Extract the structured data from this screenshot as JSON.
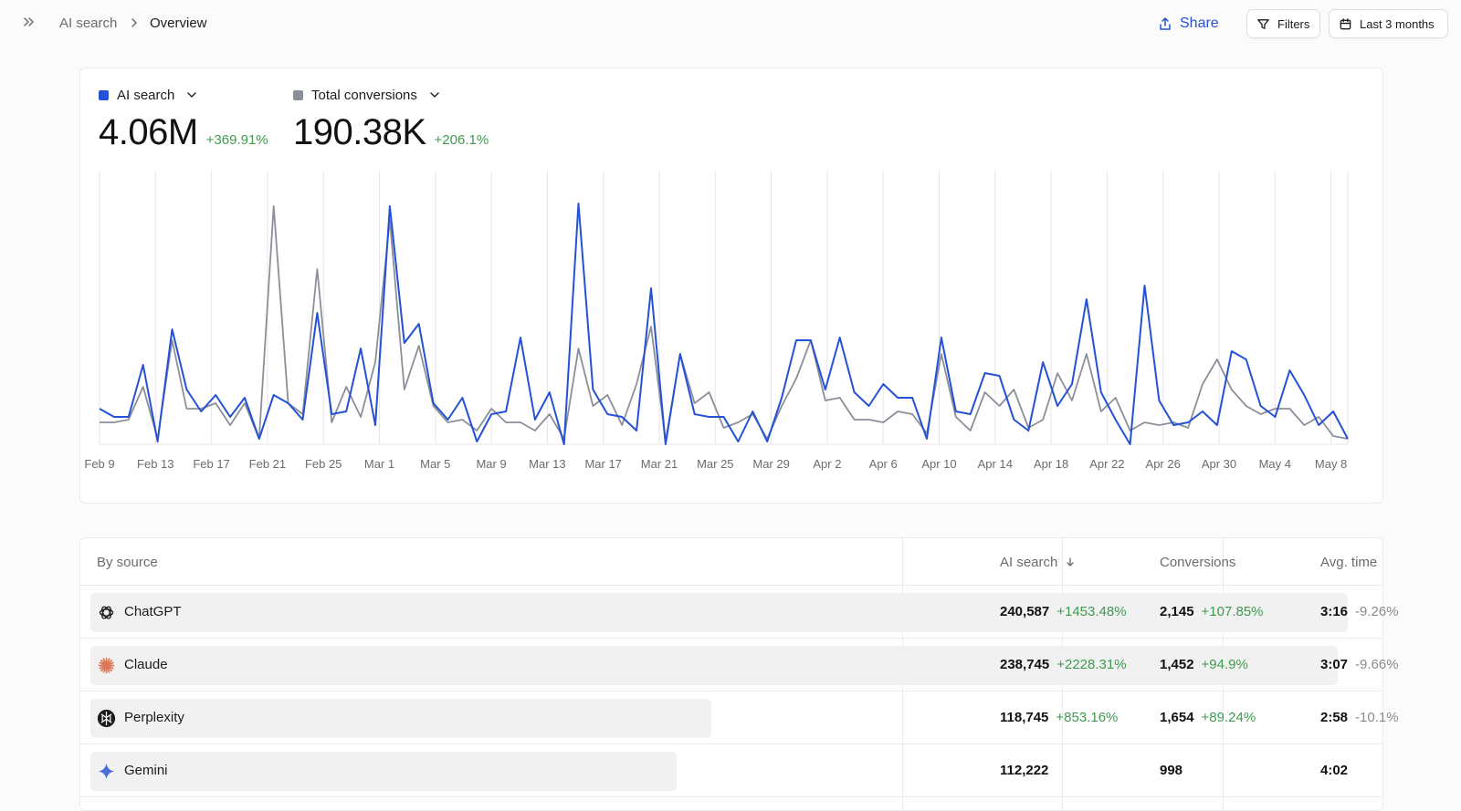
{
  "breadcrumb": {
    "root": "AI search",
    "current": "Overview"
  },
  "toolbar": {
    "share_label": "Share",
    "filters_label": "Filters",
    "date_range_label": "Last 3 months"
  },
  "metrics": [
    {
      "label": "AI search",
      "value": "4.06M",
      "delta": "+369.91%",
      "color": "#2451d6"
    },
    {
      "label": "Total conversions",
      "value": "190.38K",
      "delta": "+206.1%",
      "color": "#8b8f99"
    }
  ],
  "chart_data": {
    "type": "line",
    "x_ticks": [
      "Feb 9",
      "Feb 13",
      "Feb 17",
      "Feb 21",
      "Feb 25",
      "Mar 1",
      "Mar 5",
      "Mar 9",
      "Mar 13",
      "Mar 17",
      "Mar 21",
      "Mar 25",
      "Mar 29",
      "Apr 2",
      "Apr 6",
      "Apr 10",
      "Apr 14",
      "Apr 18",
      "Apr 22",
      "Apr 26",
      "Apr 30",
      "May 4",
      "May 8"
    ],
    "grid": true,
    "series": [
      {
        "name": "AI search",
        "color": "#2451d6",
        "values": [
          0.13,
          0.1,
          0.1,
          0.29,
          0.01,
          0.42,
          0.2,
          0.12,
          0.18,
          0.1,
          0.17,
          0.02,
          0.18,
          0.15,
          0.09,
          0.48,
          0.11,
          0.12,
          0.35,
          0.07,
          0.87,
          0.37,
          0.44,
          0.15,
          0.09,
          0.17,
          0.01,
          0.11,
          0.12,
          0.39,
          0.09,
          0.19,
          0.0,
          0.88,
          0.2,
          0.11,
          0.1,
          0.05,
          0.57,
          0.0,
          0.33,
          0.11,
          0.1,
          0.1,
          0.01,
          0.12,
          0.01,
          0.17,
          0.38,
          0.38,
          0.2,
          0.39,
          0.19,
          0.14,
          0.22,
          0.17,
          0.17,
          0.02,
          0.39,
          0.12,
          0.11,
          0.26,
          0.25,
          0.09,
          0.05,
          0.3,
          0.14,
          0.22,
          0.53,
          0.19,
          0.09,
          0.0,
          0.58,
          0.16,
          0.07,
          0.08,
          0.12,
          0.07,
          0.34,
          0.31,
          0.14,
          0.1,
          0.27,
          0.18,
          0.07,
          0.12,
          0.02
        ]
      },
      {
        "name": "Total conversions",
        "color": "#8b8f99",
        "values": [
          0.08,
          0.08,
          0.09,
          0.21,
          0.02,
          0.38,
          0.13,
          0.13,
          0.15,
          0.07,
          0.15,
          0.02,
          0.87,
          0.15,
          0.11,
          0.64,
          0.08,
          0.21,
          0.1,
          0.3,
          0.82,
          0.2,
          0.36,
          0.14,
          0.08,
          0.09,
          0.05,
          0.13,
          0.08,
          0.08,
          0.05,
          0.11,
          0.02,
          0.35,
          0.14,
          0.18,
          0.07,
          0.22,
          0.43,
          0.01,
          0.33,
          0.15,
          0.19,
          0.06,
          0.08,
          0.11,
          0.02,
          0.14,
          0.24,
          0.38,
          0.16,
          0.17,
          0.09,
          0.09,
          0.08,
          0.12,
          0.11,
          0.04,
          0.33,
          0.1,
          0.05,
          0.19,
          0.14,
          0.2,
          0.06,
          0.09,
          0.26,
          0.16,
          0.33,
          0.12,
          0.17,
          0.05,
          0.08,
          0.07,
          0.08,
          0.06,
          0.22,
          0.31,
          0.2,
          0.14,
          0.11,
          0.13,
          0.13,
          0.07,
          0.1,
          0.03,
          0.02
        ]
      }
    ]
  },
  "table": {
    "headers": {
      "source": "By source",
      "ai_search": "AI search",
      "conversions": "Conversions",
      "avg_time": "Avg. time"
    },
    "rows": [
      {
        "name": "ChatGPT",
        "icon": "chatgpt-icon",
        "bar_fraction": 1.0,
        "ai_search": "240,587",
        "ai_delta": "+1453.48%",
        "conversions": "2,145",
        "conv_delta": "+107.85%",
        "avg_time": "3:16",
        "time_delta": "-9.26%"
      },
      {
        "name": "Claude",
        "icon": "claude-icon",
        "bar_fraction": 0.992,
        "ai_search": "238,745",
        "ai_delta": "+2228.31%",
        "conversions": "1,452",
        "conv_delta": "+94.9%",
        "avg_time": "3:07",
        "time_delta": "-9.66%"
      },
      {
        "name": "Perplexity",
        "icon": "perplexity-icon",
        "bar_fraction": 0.494,
        "ai_search": "118,745",
        "ai_delta": "+853.16%",
        "conversions": "1,654",
        "conv_delta": "+89.24%",
        "avg_time": "2:58",
        "time_delta": "-10.1%"
      },
      {
        "name": "Gemini",
        "icon": "gemini-icon",
        "bar_fraction": 0.466,
        "ai_search": "112,222",
        "ai_delta": "",
        "conversions": "998",
        "conv_delta": "",
        "avg_time": "4:02",
        "time_delta": ""
      }
    ]
  }
}
